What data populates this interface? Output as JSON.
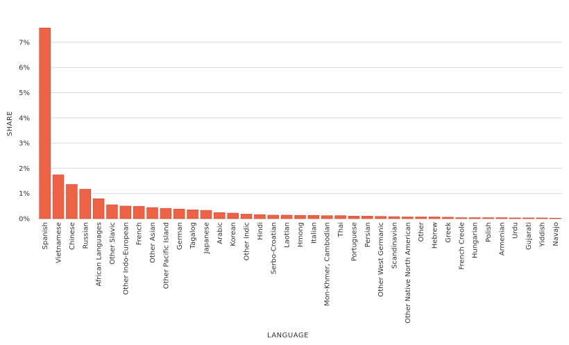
{
  "chart_data": {
    "type": "bar",
    "xlabel": "LANGUAGE",
    "ylabel": "SHARE",
    "ylim": [
      0,
      8
    ],
    "y_ticks": [
      "0%",
      "1%",
      "2%",
      "3%",
      "4%",
      "5%",
      "6%",
      "7%"
    ],
    "grid": true,
    "bar_color": "#ee6346",
    "categories": [
      "Spanish",
      "Vietnamese",
      "Chinese",
      "Russian",
      "African Languages",
      "Other Slavic",
      "Other Indo-European",
      "French",
      "Other Asian",
      "Other Pacific Island",
      "German",
      "Tagalog",
      "Japanese",
      "Arabic",
      "Korean",
      "Other Indic",
      "Hindi",
      "Serbo-Croatian",
      "Laotian",
      "Hmong",
      "Italian",
      "Mon-Khmer, Cambodian",
      "Thai",
      "Portuguese",
      "Persian",
      "Other West Germanic",
      "Scandinavian",
      "Other Native North American",
      "Other",
      "Hebrew",
      "Greek",
      "French Creole",
      "Hungarian",
      "Polish",
      "Armenian",
      "Urdu",
      "Gujarati",
      "Yiddish",
      "Navajo"
    ],
    "values": [
      7.57,
      1.74,
      1.36,
      1.17,
      0.79,
      0.55,
      0.5,
      0.49,
      0.44,
      0.41,
      0.38,
      0.35,
      0.33,
      0.24,
      0.22,
      0.18,
      0.16,
      0.14,
      0.14,
      0.13,
      0.13,
      0.12,
      0.12,
      0.1,
      0.1,
      0.09,
      0.08,
      0.07,
      0.07,
      0.07,
      0.06,
      0.04,
      0.04,
      0.04,
      0.04,
      0.03,
      0.03,
      0.03,
      0.02
    ]
  }
}
